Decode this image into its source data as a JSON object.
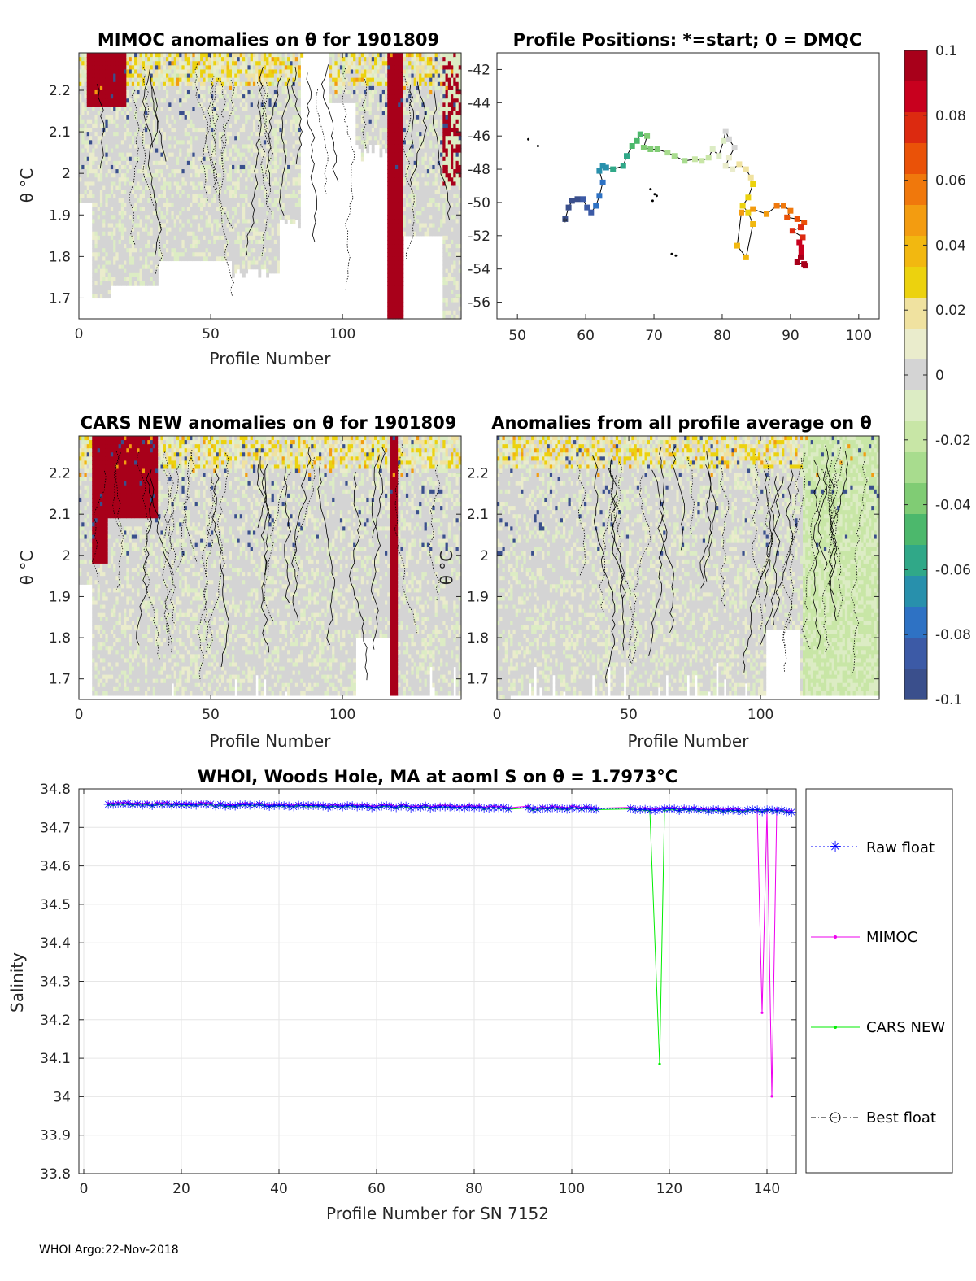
{
  "footer": "WHOI Argo:22-Nov-2018",
  "chart_data": [
    {
      "type": "heatmap",
      "title": "MIMOC anomalies on θ  for 1901809",
      "xlabel": "Profile Number",
      "ylabel": "θ °C",
      "xlim": [
        0,
        145
      ],
      "ylim": [
        1.65,
        2.29
      ],
      "xticks": [
        0,
        50,
        100
      ],
      "yticks": [
        1.7,
        1.8,
        1.9,
        2,
        2.1,
        2.2
      ],
      "ytick_labels": [
        "1.7",
        "1.8",
        "1.9",
        "2",
        "2.1",
        "2.2"
      ]
    },
    {
      "type": "scatter",
      "title": "Profile Positions: *=start; 0 = DMQC",
      "xlim": [
        47,
        103
      ],
      "ylim": [
        -57,
        -41
      ],
      "xticks": [
        50,
        60,
        70,
        80,
        90,
        100
      ],
      "yticks": [
        -56,
        -54,
        -52,
        -50,
        -48,
        -46,
        -44,
        -42
      ],
      "track": [
        [
          57,
          -51
        ],
        [
          57.5,
          -50.3
        ],
        [
          58,
          -49.9
        ],
        [
          58.8,
          -49.8
        ],
        [
          59.6,
          -49.8
        ],
        [
          60.2,
          -50.3
        ],
        [
          60.8,
          -50.6
        ],
        [
          61.5,
          -50.2
        ],
        [
          62,
          -49.6
        ],
        [
          62.5,
          -48.8
        ],
        [
          62,
          -48.1
        ],
        [
          62.5,
          -47.8
        ],
        [
          63,
          -47.9
        ],
        [
          64,
          -48
        ],
        [
          65.5,
          -47.8
        ],
        [
          66,
          -47.2
        ],
        [
          66.8,
          -46.6
        ],
        [
          67.5,
          -46.3
        ],
        [
          68,
          -45.9
        ],
        [
          69,
          -46
        ],
        [
          68.5,
          -46.7
        ],
        [
          69.5,
          -46.8
        ],
        [
          70.5,
          -46.8
        ],
        [
          72,
          -47
        ],
        [
          73,
          -47.2
        ],
        [
          74.5,
          -47.5
        ],
        [
          76,
          -47.4
        ],
        [
          77,
          -47.5
        ],
        [
          78,
          -47.3
        ],
        [
          78.6,
          -46.8
        ],
        [
          79.5,
          -47.2
        ],
        [
          80.2,
          -46.3
        ],
        [
          80.5,
          -45.7
        ],
        [
          81,
          -46.2
        ],
        [
          81.8,
          -46.7
        ],
        [
          81,
          -47.3
        ],
        [
          80.5,
          -47.8
        ],
        [
          81.5,
          -48
        ],
        [
          82.5,
          -47.7
        ],
        [
          83.5,
          -48
        ],
        [
          84.2,
          -48.5
        ],
        [
          84.5,
          -48.9
        ],
        [
          83.8,
          -49.7
        ],
        [
          83,
          -50.2
        ],
        [
          83.8,
          -50.6
        ],
        [
          84.5,
          -51.3
        ],
        [
          83.5,
          -53.3
        ],
        [
          82.2,
          -52.6
        ],
        [
          82.8,
          -50.6
        ],
        [
          84.5,
          -50.4
        ],
        [
          86.5,
          -50.7
        ],
        [
          88,
          -50.2
        ],
        [
          89,
          -50.2
        ],
        [
          90,
          -50.5
        ],
        [
          89.5,
          -50.9
        ],
        [
          91,
          -51
        ],
        [
          92,
          -51.2
        ],
        [
          91.5,
          -51.5
        ],
        [
          90.3,
          -51.7
        ],
        [
          91.8,
          -52.1
        ],
        [
          91.3,
          -52.4
        ],
        [
          91.6,
          -52.7
        ],
        [
          91.6,
          -53
        ],
        [
          91.5,
          -53.3
        ],
        [
          91,
          -53.6
        ],
        [
          92,
          -53.7
        ],
        [
          92.2,
          -53.8
        ]
      ],
      "other_positions": [
        [
          51.6,
          -46.2
        ],
        [
          53,
          -46.6
        ],
        [
          69.5,
          -49.2
        ],
        [
          70.1,
          -49.5
        ],
        [
          69.8,
          -49.9
        ],
        [
          70.4,
          -49.6
        ],
        [
          73.2,
          -53.2
        ],
        [
          72.6,
          -53.1
        ]
      ]
    },
    {
      "type": "heatmap",
      "title": "CARS NEW anomalies on θ for 1901809",
      "xlabel": "Profile Number",
      "ylabel": "θ °C",
      "xlim": [
        0,
        145
      ],
      "ylim": [
        1.65,
        2.29
      ],
      "xticks": [
        0,
        50,
        100
      ],
      "yticks": [
        1.7,
        1.8,
        1.9,
        2,
        2.1,
        2.2
      ],
      "ytick_labels": [
        "1.7",
        "1.8",
        "1.9",
        "2",
        "2.1",
        "2.2"
      ]
    },
    {
      "type": "heatmap",
      "title": "Anomalies from all profile average on θ",
      "xlabel": "Profile Number",
      "ylabel": "θ °C",
      "xlim": [
        0,
        145
      ],
      "ylim": [
        1.65,
        2.29
      ],
      "xticks": [
        0,
        50,
        100
      ],
      "yticks": [
        1.7,
        1.8,
        1.9,
        2,
        2.1,
        2.2
      ],
      "ytick_labels": [
        "1.7",
        "1.8",
        "1.9",
        "2",
        "2.1",
        "2.2"
      ]
    },
    {
      "type": "line",
      "title": "WHOI, Woods Hole, MA at aoml S on θ = 1.7973",
      "title_unit": "°C",
      "xlabel": "Profile Number for SN 7152",
      "ylabel": "Salinity",
      "xlim": [
        -1,
        146
      ],
      "ylim": [
        33.8,
        34.8
      ],
      "xticks": [
        0,
        20,
        40,
        60,
        80,
        100,
        120,
        140
      ],
      "yticks": [
        33.8,
        33.9,
        34,
        34.1,
        34.2,
        34.3,
        34.4,
        34.5,
        34.6,
        34.7,
        34.8
      ],
      "ytick_labels": [
        "33.8",
        "33.9",
        "34",
        "34.1",
        "34.2",
        "34.3",
        "34.4",
        "34.5",
        "34.6",
        "34.7",
        "34.8"
      ],
      "legend": [
        "Raw float",
        "MIMOC",
        "CARS NEW",
        "Best float"
      ],
      "legend_position": "outside-right",
      "series": [
        {
          "name": "Raw float",
          "color": "#0000ff",
          "marker": "*",
          "x_range": [
            5,
            145
          ],
          "values_approx": 34.752
        },
        {
          "name": "MIMOC",
          "color": "#ee00ee",
          "points": [
            [
              136,
              34.745
            ],
            [
              138,
              34.744
            ],
            [
              139,
              34.218
            ],
            [
              140,
              34.744
            ],
            [
              141,
              34.001
            ],
            [
              142,
              34.746
            ],
            [
              143,
              34.745
            ]
          ]
        },
        {
          "name": "CARS NEW",
          "color": "#00ee00",
          "points": [
            [
              115,
              34.745
            ],
            [
              116,
              34.743
            ],
            [
              118,
              34.085
            ],
            [
              119,
              34.744
            ],
            [
              120,
              34.746
            ]
          ]
        },
        {
          "name": "Best float",
          "color": "#000000",
          "marker": "o"
        }
      ]
    },
    {
      "type": "colorbar",
      "range": [
        -0.1,
        0.1
      ],
      "ticks": [
        0.1,
        0.08,
        0.06,
        0.04,
        0.02,
        0,
        -0.02,
        -0.04,
        -0.06,
        -0.08,
        -0.1
      ],
      "tick_labels": [
        "0.1",
        "0.08",
        "0.06",
        "0.04",
        "0.02",
        "0",
        "-0.02",
        "-0.04",
        "-0.06",
        "-0.08",
        "-0.1"
      ],
      "colors": [
        "#a8001a",
        "#c8001e",
        "#dc2a10",
        "#ea5208",
        "#f0780c",
        "#f39c10",
        "#f2b810",
        "#ecd20e",
        "#f0e2a0",
        "#eaeccc",
        "#d4d4d4",
        "#dcecc4",
        "#c8e6a6",
        "#a8dc8e",
        "#80cc74",
        "#4cb86c",
        "#30a888",
        "#2890ac",
        "#2e72c4",
        "#3c5aa6",
        "#3a4f8c"
      ]
    }
  ]
}
